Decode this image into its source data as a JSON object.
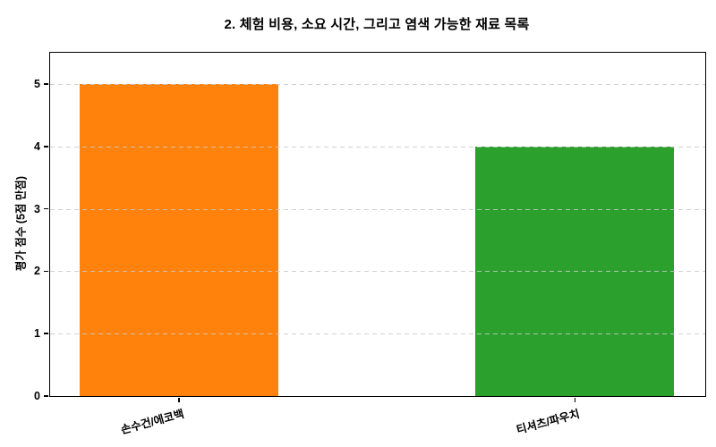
{
  "chart_data": {
    "type": "bar",
    "title": "2. 체험 비용, 소요 시간, 그리고 염색 가능한 재료 목록",
    "categories": [
      "손수건/에코백",
      "티셔츠/파우치"
    ],
    "values": [
      5,
      4
    ],
    "colors": [
      "#ff820d",
      "#2ca02c"
    ],
    "xlabel": "",
    "ylabel": "평가 점수 (5점 만점)",
    "ylim": [
      0,
      5.5
    ],
    "yticks": [
      0,
      1,
      2,
      3,
      4,
      5
    ],
    "grid": {
      "axis": "y",
      "style": "dashed",
      "color": "#c8c8c8",
      "above_bars": true
    },
    "legend_position": "none",
    "bar_centers_frac": [
      0.197,
      0.801
    ],
    "bar_width_frac": 0.303,
    "x_tick_label_rotation_deg": 15
  }
}
